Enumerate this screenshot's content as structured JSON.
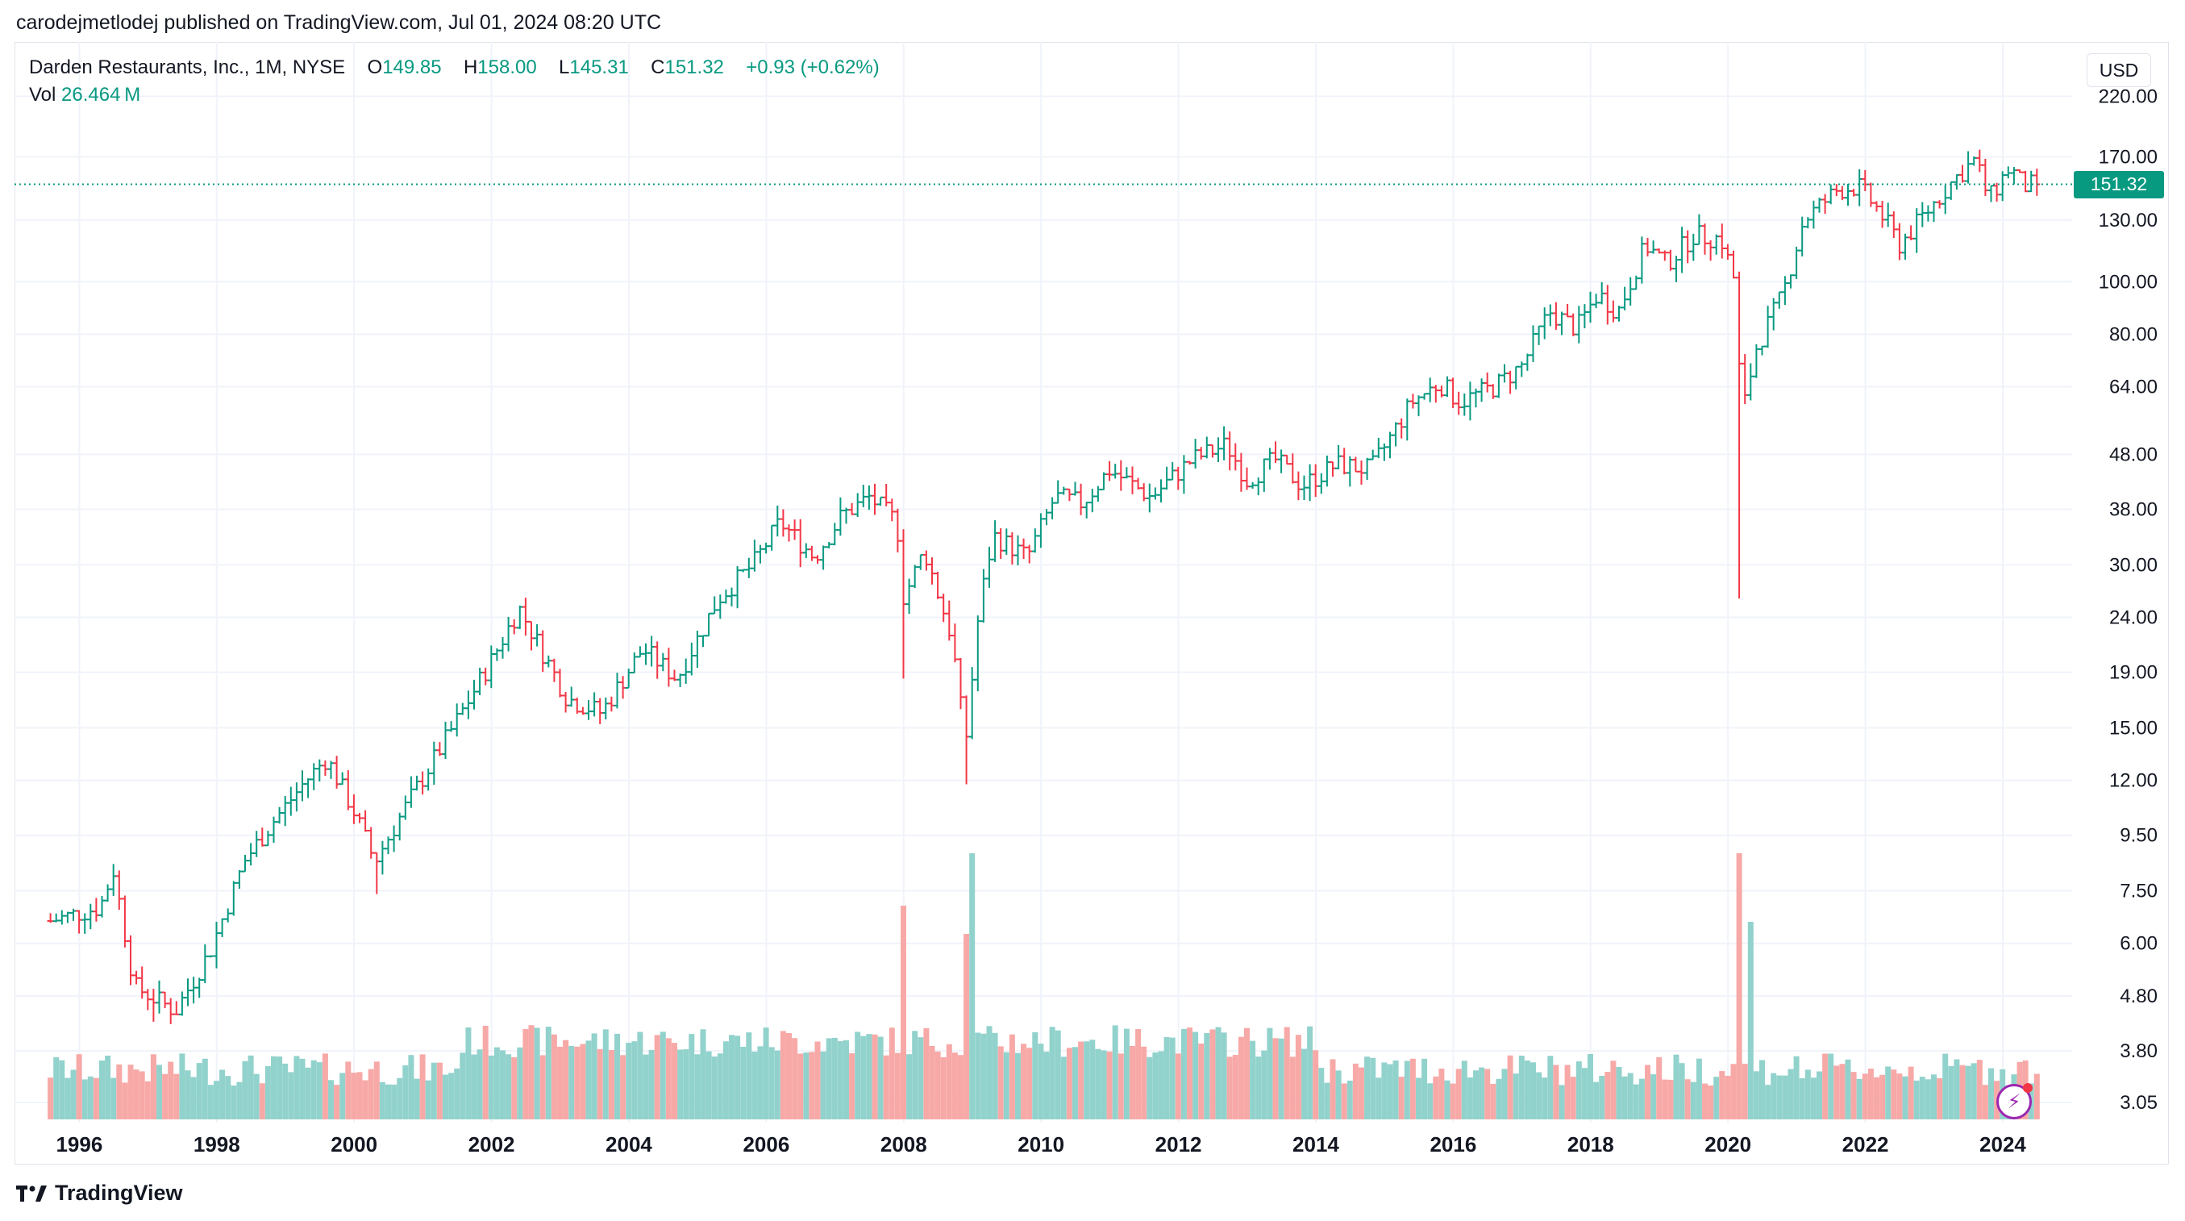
{
  "header": {
    "publish_line": "carodejmetlodej published on TradingView.com, Jul 01, 2024 08:20 UTC"
  },
  "legend": {
    "symbol": "Darden Restaurants, Inc., 1M, NYSE",
    "open_label": "O",
    "open": "149.85",
    "high_label": "H",
    "high": "158.00",
    "low_label": "L",
    "low": "145.31",
    "close_label": "C",
    "close": "151.32",
    "change": "+0.93 (+0.62%)",
    "vol_label": "Vol",
    "vol_value": "26.464 M"
  },
  "currency_button": "USD",
  "last_price_tag": "151.32",
  "brand": "TradingView",
  "colors": {
    "up": "#089981",
    "down": "#f23645",
    "up_volume": "#92d2cc",
    "down_volume": "#f7a9a7",
    "grid": "#f0f3fa"
  },
  "icons": {
    "brand": "tradingview-logo-icon",
    "badge": "lightning-icon"
  },
  "chart_data": {
    "type": "ohlc",
    "scale": "log",
    "interval": "1M",
    "x_ticks": [
      "1996",
      "1998",
      "2000",
      "2002",
      "2004",
      "2006",
      "2008",
      "2010",
      "2012",
      "2014",
      "2016",
      "2018",
      "2020",
      "2022",
      "2024"
    ],
    "y_ticks": [
      3.05,
      3.8,
      4.8,
      6.0,
      7.5,
      9.5,
      12.0,
      15.0,
      19.0,
      24.0,
      30.0,
      38.0,
      48.0,
      64.0,
      80.0,
      100.0,
      130.0,
      170.0,
      220.0
    ],
    "y_tick_labels": [
      "3.05",
      "3.80",
      "4.80",
      "6.00",
      "7.50",
      "9.50",
      "12.00",
      "15.00",
      "19.00",
      "24.00",
      "30.00",
      "38.00",
      "48.00",
      "64.00",
      "80.00",
      "100.00",
      "130.00",
      "170.00",
      "220.00"
    ],
    "ylim": [
      2.8,
      240
    ],
    "last_price": 151.32,
    "close_anchors": [
      {
        "date": "1995.58",
        "close": 6.6
      },
      {
        "date": "1996.3",
        "close": 7.0
      },
      {
        "date": "1996.5",
        "close": 8.2
      },
      {
        "date": "1996.8",
        "close": 5.0
      },
      {
        "date": "1997.4",
        "close": 4.5
      },
      {
        "date": "1997.9",
        "close": 5.8
      },
      {
        "date": "1998.4",
        "close": 8.5
      },
      {
        "date": "1998.8",
        "close": 10.0
      },
      {
        "date": "1999.3",
        "close": 12.0
      },
      {
        "date": "1999.6",
        "close": 13.2
      },
      {
        "date": "2000.0",
        "close": 10.5
      },
      {
        "date": "2000.3",
        "close": 8.5
      },
      {
        "date": "2000.8",
        "close": 11.0
      },
      {
        "date": "2001.5",
        "close": 15.5
      },
      {
        "date": "2002.0",
        "close": 20.0
      },
      {
        "date": "2002.4",
        "close": 25.0
      },
      {
        "date": "2003.1",
        "close": 17.0
      },
      {
        "date": "2003.6",
        "close": 16.0
      },
      {
        "date": "2004.2",
        "close": 21.0
      },
      {
        "date": "2004.7",
        "close": 18.5
      },
      {
        "date": "2005.3",
        "close": 26.0
      },
      {
        "date": "2005.8",
        "close": 30.0
      },
      {
        "date": "2006.2",
        "close": 36.0
      },
      {
        "date": "2006.7",
        "close": 31.0
      },
      {
        "date": "2007.1",
        "close": 37.0
      },
      {
        "date": "2007.5",
        "close": 40.0
      },
      {
        "date": "2007.9",
        "close": 36.0
      },
      {
        "date": "2008.0",
        "close": 26.0
      },
      {
        "date": "2008.3",
        "close": 32.0
      },
      {
        "date": "2008.7",
        "close": 22.0
      },
      {
        "date": "2008.9",
        "close": 14.0
      },
      {
        "date": "2009.1",
        "close": 25.0
      },
      {
        "date": "2009.3",
        "close": 34.0
      },
      {
        "date": "2009.8",
        "close": 31.0
      },
      {
        "date": "2010.2",
        "close": 40.0
      },
      {
        "date": "2010.6",
        "close": 39.0
      },
      {
        "date": "2011.0",
        "close": 45.0
      },
      {
        "date": "2011.6",
        "close": 40.0
      },
      {
        "date": "2012.2",
        "close": 47.0
      },
      {
        "date": "2012.7",
        "close": 50.0
      },
      {
        "date": "2013.0",
        "close": 43.0
      },
      {
        "date": "2013.4",
        "close": 47.0
      },
      {
        "date": "2013.8",
        "close": 42.0
      },
      {
        "date": "2014.3",
        "close": 46.0
      },
      {
        "date": "2014.8",
        "close": 45.0
      },
      {
        "date": "2015.4",
        "close": 60.0
      },
      {
        "date": "2015.8",
        "close": 65.0
      },
      {
        "date": "2016.1",
        "close": 60.0
      },
      {
        "date": "2016.6",
        "close": 64.0
      },
      {
        "date": "2017.0",
        "close": 70.0
      },
      {
        "date": "2017.4",
        "close": 88.0
      },
      {
        "date": "2017.8",
        "close": 82.0
      },
      {
        "date": "2018.1",
        "close": 95.0
      },
      {
        "date": "2018.4",
        "close": 88.0
      },
      {
        "date": "2018.8",
        "close": 117.0
      },
      {
        "date": "2019.1",
        "close": 108.0
      },
      {
        "date": "2019.5",
        "close": 122.0
      },
      {
        "date": "2019.9",
        "close": 120.0
      },
      {
        "date": "2020.1",
        "close": 100.0
      },
      {
        "date": "2020.2",
        "close": 56.0
      },
      {
        "date": "2020.4",
        "close": 75.0
      },
      {
        "date": "2020.8",
        "close": 95.0
      },
      {
        "date": "2021.1",
        "close": 130.0
      },
      {
        "date": "2021.6",
        "close": 148.0
      },
      {
        "date": "2021.9",
        "close": 150.0
      },
      {
        "date": "2022.2",
        "close": 135.0
      },
      {
        "date": "2022.5",
        "close": 117.0
      },
      {
        "date": "2022.9",
        "close": 135.0
      },
      {
        "date": "2023.3",
        "close": 155.0
      },
      {
        "date": "2023.6",
        "close": 168.0
      },
      {
        "date": "2023.8",
        "close": 142.0
      },
      {
        "date": "2024.1",
        "close": 163.0
      },
      {
        "date": "2024.3",
        "close": 150.0
      },
      {
        "date": "2024.5",
        "close": 151.32
      }
    ],
    "notable_lows": [
      {
        "date": "1997.1",
        "low": 4.3
      },
      {
        "date": "2000.3",
        "low": 7.4
      },
      {
        "date": "2008.0",
        "low": 18.5
      },
      {
        "date": "2008.9",
        "low": 11.8
      },
      {
        "date": "2020.2",
        "low": 26.0
      }
    ],
    "volume_spikes": [
      {
        "date": "2008.0",
        "volume": "high"
      },
      {
        "date": "2009.0",
        "volume": "very high"
      },
      {
        "date": "2020.2",
        "volume": "very high"
      }
    ]
  }
}
